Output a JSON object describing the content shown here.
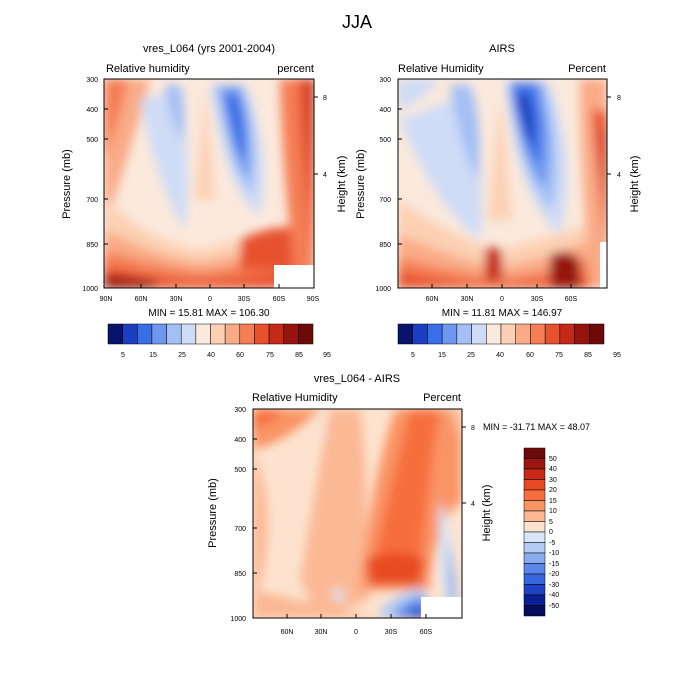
{
  "page_title": "JJA",
  "chart_data": [
    {
      "type": "heatmap",
      "title": "vres_L064 (yrs 2001-2004)",
      "left_label": "Relative humidity",
      "right_label": "percent",
      "ylabel": "Pressure (mb)",
      "right_axis_label": "Height (km)",
      "xticks": [
        "90N",
        "60N",
        "30N",
        "0",
        "30S",
        "60S",
        "90S"
      ],
      "yticks": [
        "300",
        "400",
        "500",
        "700",
        "850",
        "1000"
      ],
      "right_ticks": [
        "8",
        "4"
      ],
      "stats": "MIN =  15.81  MAX = 106.30",
      "colorbar_ticks": [
        "5",
        "15",
        "25",
        "40",
        "60",
        "75",
        "85",
        "95"
      ]
    },
    {
      "type": "heatmap",
      "title": "AIRS",
      "left_label": "Relative Humidity",
      "right_label": "Percent",
      "ylabel": "Pressure (mb)",
      "right_axis_label": "Height (km)",
      "xticks": [
        "60N",
        "30N",
        "0",
        "30S",
        "60S"
      ],
      "yticks": [
        "300",
        "400",
        "500",
        "700",
        "850",
        "1000"
      ],
      "right_ticks": [
        "8",
        "4"
      ],
      "stats": "MIN =  11.81  MAX = 146.97",
      "colorbar_ticks": [
        "5",
        "15",
        "25",
        "40",
        "60",
        "75",
        "85",
        "95"
      ]
    },
    {
      "type": "heatmap",
      "title": "vres_L064 - AIRS",
      "left_label": "Relative Humidity",
      "right_label": "Percent",
      "ylabel": "Pressure (mb)",
      "right_axis_label": "Height (km)",
      "xticks": [
        "60N",
        "30N",
        "0",
        "30S",
        "60S"
      ],
      "yticks": [
        "300",
        "400",
        "500",
        "700",
        "850",
        "1000"
      ],
      "right_ticks": [
        "8",
        "4"
      ],
      "stats": "MIN = -31.71  MAX =  48.07",
      "colorbar_ticks": [
        "50",
        "40",
        "30",
        "20",
        "15",
        "10",
        "5",
        "0",
        "-5",
        "-10",
        "-15",
        "-20",
        "-30",
        "-40",
        "-50"
      ]
    }
  ],
  "colors": {
    "abs_scale": [
      "#08136b",
      "#1a3fc0",
      "#3a6ee6",
      "#6e98f0",
      "#a3bff5",
      "#cfdcf6",
      "#fbe9dc",
      "#fcd0b4",
      "#f9aa86",
      "#f47e55",
      "#e8512d",
      "#c52a18",
      "#97130d",
      "#6c0a09"
    ],
    "diff_scale": [
      "#6c0a09",
      "#9c150e",
      "#c92a18",
      "#e84b24",
      "#f76e3e",
      "#f99465",
      "#fbb894",
      "#fde3cf",
      "#d7e5f7",
      "#b2ccf3",
      "#88acef",
      "#5c87ea",
      "#3866de",
      "#1d43c4",
      "#0b1f94",
      "#060c5c"
    ]
  }
}
